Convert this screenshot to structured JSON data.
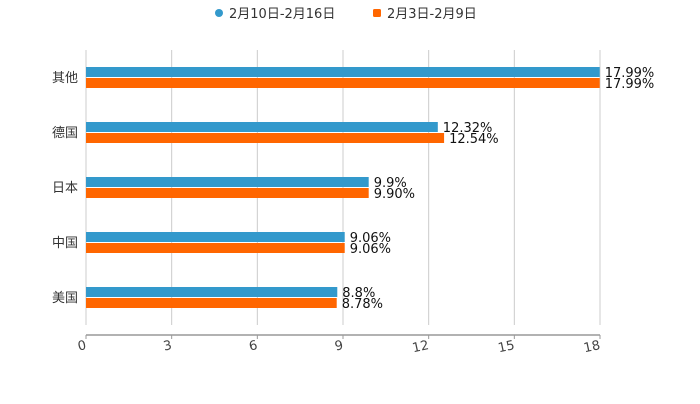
{
  "chart_data": {
    "type": "bar",
    "orientation": "horizontal",
    "title": "",
    "xlabel": "",
    "ylabel": "",
    "categories": [
      "其他",
      "德国",
      "日本",
      "中国",
      "美国"
    ],
    "series": [
      {
        "name": "2月10日-2月16日",
        "color": "#3399cc",
        "values": [
          17.99,
          12.32,
          9.9,
          9.06,
          8.8
        ],
        "labels": [
          "17.99%",
          "12.32%",
          "9.9%",
          "9.06%",
          "8.8%"
        ]
      },
      {
        "name": "2月3日-2月9日",
        "color": "#ff6600",
        "values": [
          17.99,
          12.54,
          9.9,
          9.06,
          8.78
        ],
        "labels": [
          "17.99%",
          "12.54%",
          "9.90%",
          "9.06%",
          "8.78%"
        ]
      }
    ],
    "xlim": [
      0,
      18
    ],
    "xticks": [
      "0",
      "3",
      "6",
      "9",
      "12",
      "15",
      "18"
    ],
    "grid": true,
    "legend": "top-center"
  }
}
